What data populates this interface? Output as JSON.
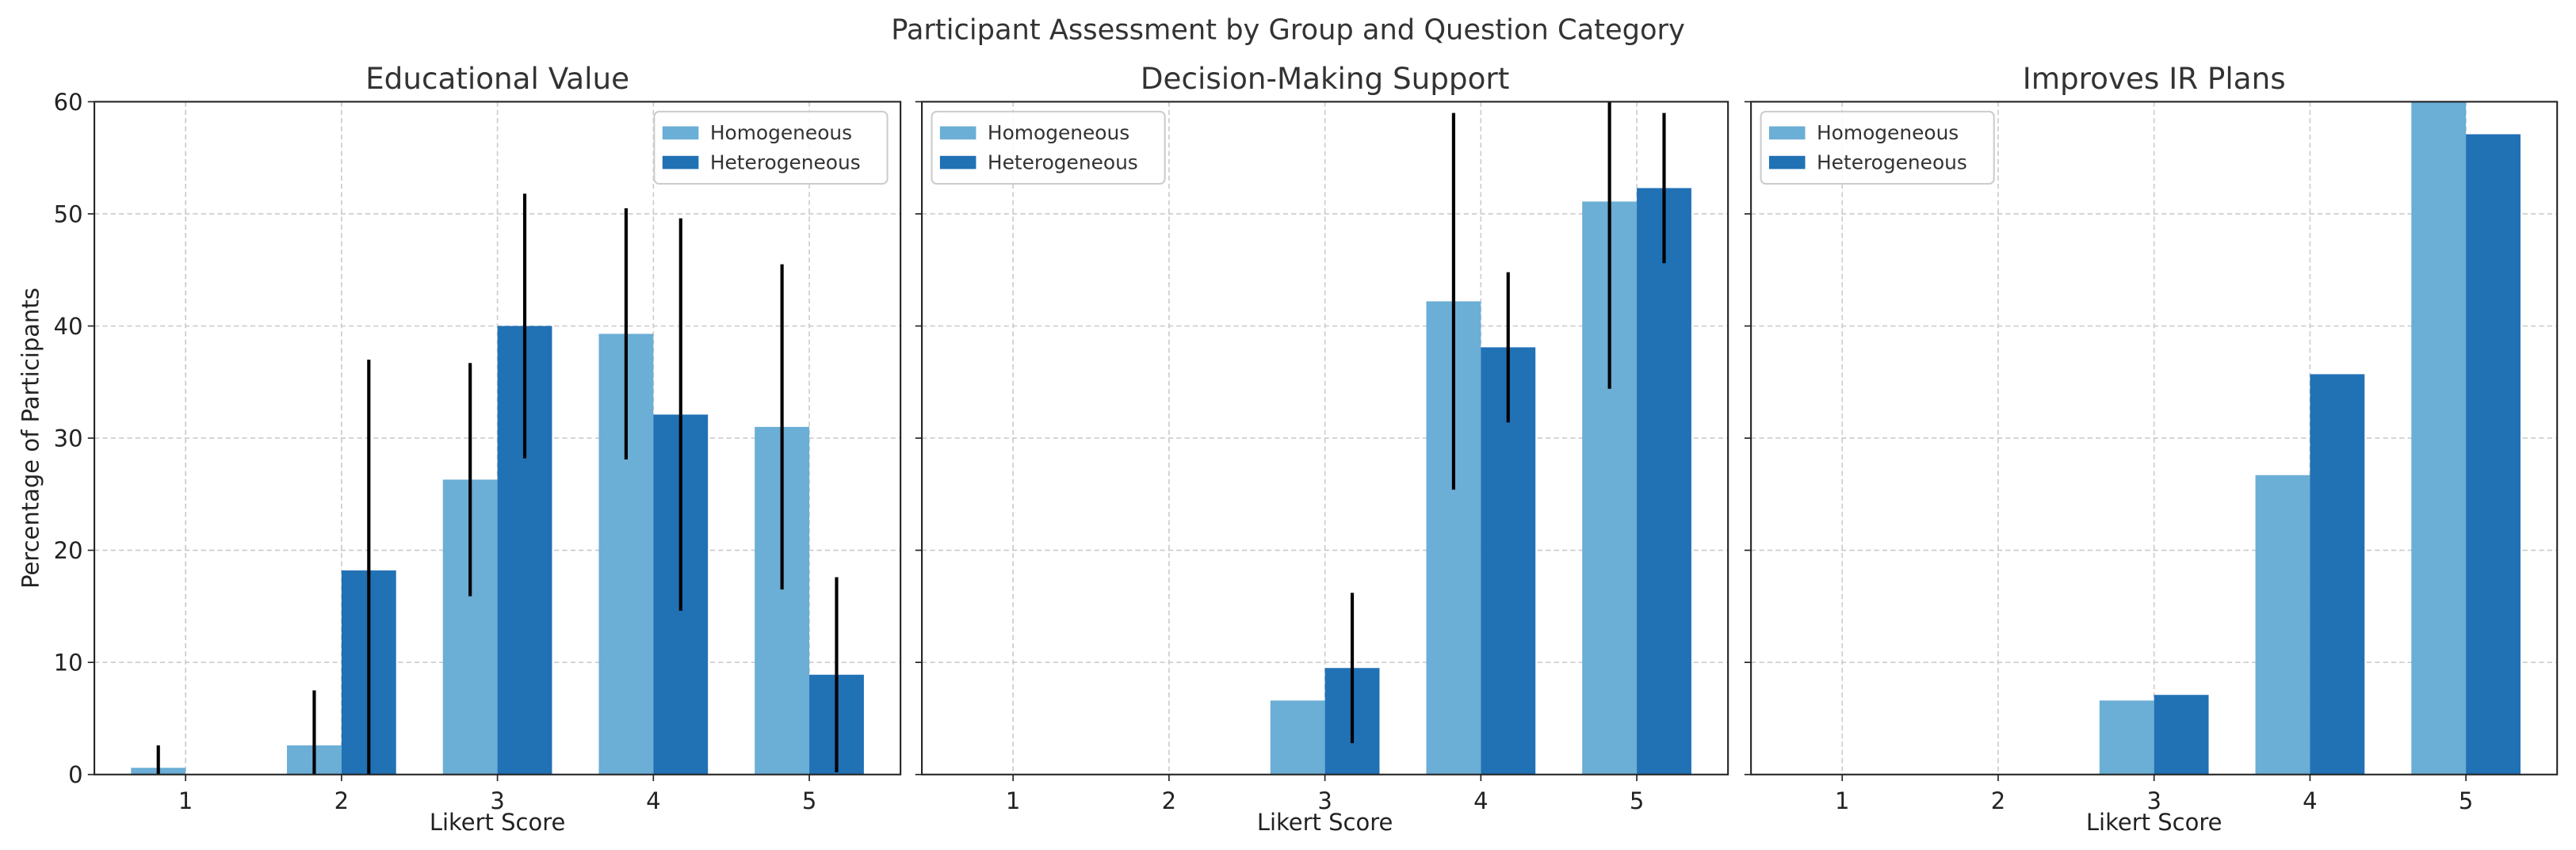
{
  "chart_data": [
    {
      "type": "bar",
      "title": "Educational Value",
      "xlabel": "Likert Score",
      "ylabel": "Percentage of Participants",
      "categories": [
        "1",
        "2",
        "3",
        "4",
        "5"
      ],
      "ylim": [
        0,
        60
      ],
      "yticks": [
        0,
        10,
        20,
        30,
        40,
        50,
        60
      ],
      "grid": true,
      "legend": "top-right",
      "series": [
        {
          "name": "Homogeneous",
          "color": "#6baed6",
          "values": [
            0.6,
            2.6,
            26.3,
            39.3,
            31.0
          ],
          "errors": [
            2.0,
            4.9,
            10.4,
            11.2,
            14.5
          ]
        },
        {
          "name": "Heterogeneous",
          "color": "#2171b5",
          "values": [
            0,
            18.2,
            40.0,
            32.1,
            8.9
          ],
          "errors": [
            null,
            18.8,
            11.8,
            17.5,
            8.7
          ]
        }
      ]
    },
    {
      "type": "bar",
      "title": "Decision-Making Support",
      "xlabel": "Likert Score",
      "ylabel": "",
      "categories": [
        "1",
        "2",
        "3",
        "4",
        "5"
      ],
      "ylim": [
        0,
        60
      ],
      "yticks": [
        0,
        10,
        20,
        30,
        40,
        50,
        60
      ],
      "grid": true,
      "legend": "top-left",
      "series": [
        {
          "name": "Homogeneous",
          "color": "#6baed6",
          "values": [
            0,
            0,
            6.6,
            42.2,
            51.1
          ],
          "errors": [
            null,
            null,
            null,
            16.8,
            16.7
          ]
        },
        {
          "name": "Heterogeneous",
          "color": "#2171b5",
          "values": [
            0,
            0,
            9.5,
            38.1,
            52.3
          ],
          "errors": [
            null,
            null,
            6.7,
            6.7,
            6.7
          ]
        }
      ]
    },
    {
      "type": "bar",
      "title": "Improves IR Plans",
      "xlabel": "Likert Score",
      "ylabel": "",
      "categories": [
        "1",
        "2",
        "3",
        "4",
        "5"
      ],
      "ylim": [
        0,
        60
      ],
      "yticks": [
        0,
        10,
        20,
        30,
        40,
        50,
        60
      ],
      "grid": true,
      "legend": "top-left",
      "series": [
        {
          "name": "Homogeneous",
          "color": "#6baed6",
          "values": [
            0,
            0,
            6.6,
            26.7,
            60.0
          ],
          "errors": [
            null,
            null,
            null,
            null,
            null
          ]
        },
        {
          "name": "Heterogeneous",
          "color": "#2171b5",
          "values": [
            0,
            0,
            7.1,
            35.7,
            57.1
          ],
          "errors": [
            null,
            null,
            null,
            null,
            null
          ]
        }
      ]
    }
  ],
  "suptitle": "Participant Assessment by Group and Question Category"
}
